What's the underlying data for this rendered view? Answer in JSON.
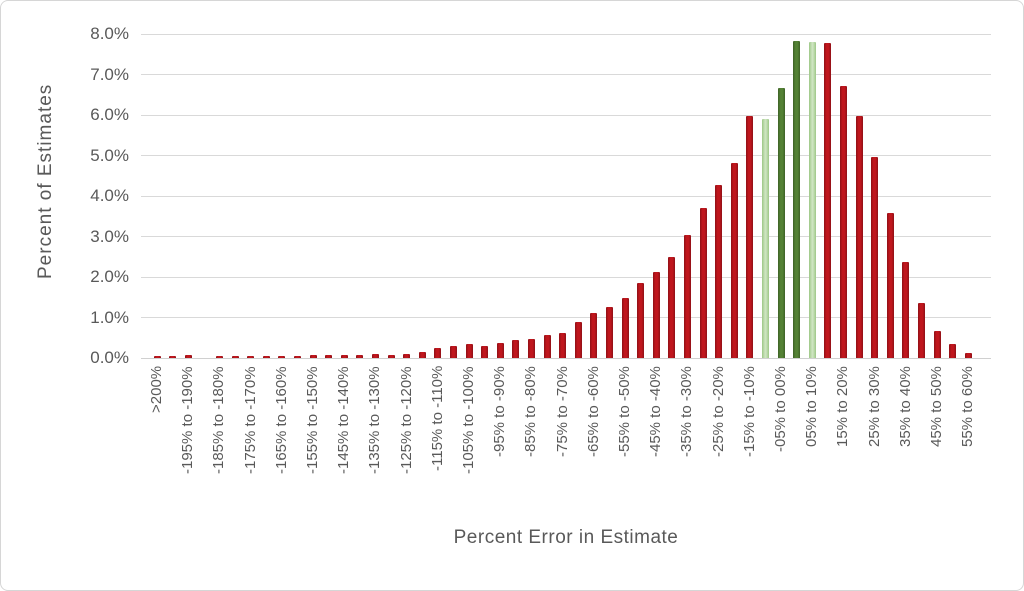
{
  "chart_data": {
    "type": "bar",
    "title": "",
    "xlabel": "Percent Error in Estimate",
    "ylabel": "Percent of Estimates",
    "ylim": [
      0,
      8
    ],
    "y_ticks": [
      "0.0%",
      "1.0%",
      "2.0%",
      "3.0%",
      "4.0%",
      "5.0%",
      "6.0%",
      "7.0%",
      "8.0%"
    ],
    "y_tick_values": [
      0,
      1,
      2,
      3,
      4,
      5,
      6,
      7,
      8
    ],
    "grid": "horizontal",
    "legend": "none",
    "note": "labels shown on alternating 5%-wide bins; unlabeled bins have empty label",
    "bars": [
      {
        "label": ">200%",
        "value": 0.05,
        "color": "red"
      },
      {
        "label": "",
        "value": 0.05,
        "color": "red"
      },
      {
        "label": "-195% to -190%",
        "value": 0.07,
        "color": "red"
      },
      {
        "label": "",
        "value": 0.01,
        "color": "red"
      },
      {
        "label": "-185% to -180%",
        "value": 0.05,
        "color": "red"
      },
      {
        "label": "",
        "value": 0.06,
        "color": "red"
      },
      {
        "label": "-175% to -170%",
        "value": 0.05,
        "color": "red"
      },
      {
        "label": "",
        "value": 0.06,
        "color": "red"
      },
      {
        "label": "-165% to -160%",
        "value": 0.06,
        "color": "red"
      },
      {
        "label": "",
        "value": 0.06,
        "color": "red"
      },
      {
        "label": "-155% to -150%",
        "value": 0.07,
        "color": "red"
      },
      {
        "label": "",
        "value": 0.07,
        "color": "red"
      },
      {
        "label": "-145% to -140%",
        "value": 0.08,
        "color": "red"
      },
      {
        "label": "",
        "value": 0.07,
        "color": "red"
      },
      {
        "label": "-135% to -130%",
        "value": 0.09,
        "color": "red"
      },
      {
        "label": "",
        "value": 0.08,
        "color": "red"
      },
      {
        "label": "-125% to -120%",
        "value": 0.1,
        "color": "red"
      },
      {
        "label": "",
        "value": 0.15,
        "color": "red"
      },
      {
        "label": "-115% to -110%",
        "value": 0.25,
        "color": "red"
      },
      {
        "label": "",
        "value": 0.3,
        "color": "red"
      },
      {
        "label": "-105% to -100%",
        "value": 0.35,
        "color": "red"
      },
      {
        "label": "",
        "value": 0.3,
        "color": "red"
      },
      {
        "label": "-95% to -90%",
        "value": 0.38,
        "color": "red"
      },
      {
        "label": "",
        "value": 0.44,
        "color": "red"
      },
      {
        "label": "-85% to -80%",
        "value": 0.48,
        "color": "red"
      },
      {
        "label": "",
        "value": 0.56,
        "color": "red"
      },
      {
        "label": "-75% to -70%",
        "value": 0.62,
        "color": "red"
      },
      {
        "label": "",
        "value": 0.88,
        "color": "red"
      },
      {
        "label": "-65% to -60%",
        "value": 1.1,
        "color": "red"
      },
      {
        "label": "",
        "value": 1.26,
        "color": "red"
      },
      {
        "label": "-55% to -50%",
        "value": 1.48,
        "color": "red"
      },
      {
        "label": "",
        "value": 1.85,
        "color": "red"
      },
      {
        "label": "-45% to -40%",
        "value": 2.12,
        "color": "red"
      },
      {
        "label": "",
        "value": 2.5,
        "color": "red"
      },
      {
        "label": "-35% to -30%",
        "value": 3.04,
        "color": "red"
      },
      {
        "label": "",
        "value": 3.7,
        "color": "red"
      },
      {
        "label": "-25% to -20%",
        "value": 4.27,
        "color": "red"
      },
      {
        "label": "",
        "value": 4.81,
        "color": "red"
      },
      {
        "label": "-15% to -10%",
        "value": 5.98,
        "color": "red"
      },
      {
        "label": "",
        "value": 5.9,
        "color": "light_green"
      },
      {
        "label": "-05% to 00%",
        "value": 6.67,
        "color": "dark_green"
      },
      {
        "label": "",
        "value": 7.83,
        "color": "dark_green"
      },
      {
        "label": "05% to 10%",
        "value": 7.8,
        "color": "light_green"
      },
      {
        "label": "",
        "value": 7.78,
        "color": "red"
      },
      {
        "label": "15% to 20%",
        "value": 6.72,
        "color": "red"
      },
      {
        "label": "",
        "value": 5.98,
        "color": "red"
      },
      {
        "label": "25% to 30%",
        "value": 4.96,
        "color": "red"
      },
      {
        "label": "",
        "value": 3.57,
        "color": "red"
      },
      {
        "label": "35% to 40%",
        "value": 2.36,
        "color": "red"
      },
      {
        "label": "",
        "value": 1.36,
        "color": "red"
      },
      {
        "label": "45% to 50%",
        "value": 0.67,
        "color": "red"
      },
      {
        "label": "",
        "value": 0.34,
        "color": "red"
      },
      {
        "label": "55% to 60%",
        "value": 0.12,
        "color": "red"
      }
    ]
  },
  "colors": {
    "bar_red": "#c00000",
    "bar_dark_green": "#548235",
    "bar_light_green": "#a9d18e",
    "axis_text": "#595959",
    "gridline": "#d9d9d9",
    "frame_border": "#d6d6d6",
    "background": "#ffffff"
  }
}
